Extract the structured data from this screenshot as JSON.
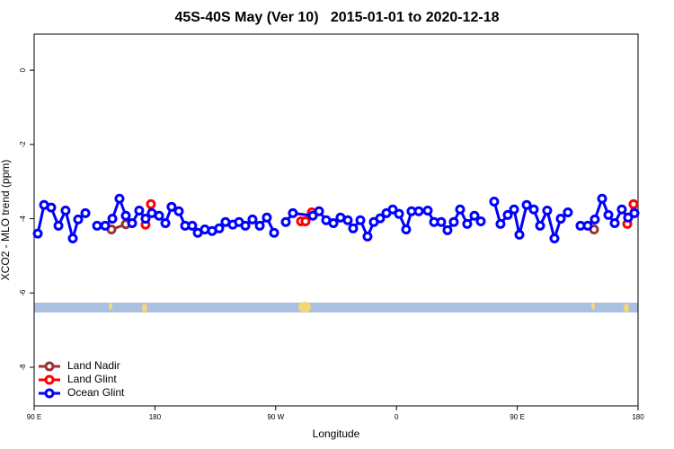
{
  "chart_data": {
    "type": "line",
    "title": "45S-40S May (Ver 10)   2015-01-01 to 2020-12-18",
    "x_label": "Longitude",
    "y_label": "XCO2 - MLO trend (ppm)",
    "xlim": [
      90,
      540
    ],
    "ylim": [
      -9.04,
      0.97
    ],
    "xticks": [
      {
        "value": 90,
        "label": "90 E"
      },
      {
        "value": 180,
        "label": "180"
      },
      {
        "value": 270,
        "label": "90 W"
      },
      {
        "value": 360,
        "label": "0"
      },
      {
        "value": 450,
        "label": "90 E"
      },
      {
        "value": 540,
        "label": "180"
      }
    ],
    "yticks": [
      0,
      -2,
      -4,
      -6,
      -8
    ],
    "legend": "bottom-left",
    "series": [
      {
        "name": "Land Nadir",
        "color": "#993333",
        "x": [
          147.6,
          158.3,
          null,
          507.2
        ],
        "values": [
          -4.29,
          -4.15,
          null,
          -4.29
        ]
      },
      {
        "name": "Land Glint",
        "color": "#ff0000",
        "x": [
          173,
          177,
          null,
          288.9,
          292.2,
          296.9,
          null,
          532,
          536.6
        ],
        "values": [
          -4.16,
          -3.61,
          null,
          -4.07,
          -4.07,
          -3.83,
          null,
          -4.14,
          -3.61
        ]
      },
      {
        "name": "Ocean Glint",
        "color": "#0000ff",
        "x": [
          92.7,
          97.4,
          102.7,
          108.1,
          113.4,
          118.8,
          122.8,
          128.2,
          null,
          136.9,
          142.9,
          148.3,
          153.6,
          158.3,
          163,
          168.3,
          173,
          177.7,
          183.1,
          187.8,
          192.4,
          197.8,
          202.5,
          207.8,
          211.9,
          217.2,
          222.6,
          227.9,
          232.6,
          238,
          242.7,
          247.4,
          252.7,
          258.1,
          263.4,
          268.8,
          null,
          277.5,
          282.8,
          297.6,
          302.3,
          307.6,
          313,
          318.3,
          323.7,
          327.7,
          333.1,
          338.4,
          343.1,
          347.8,
          352.5,
          357.2,
          361.9,
          367.2,
          371.2,
          376.6,
          383.3,
          388,
          393.3,
          398,
          402.7,
          407.4,
          412.7,
          418.1,
          422.8,
          null,
          432.8,
          437.5,
          442.9,
          447.6,
          451.6,
          457,
          462.3,
          467,
          472.3,
          477.7,
          482.4,
          487.7,
          null,
          497.1,
          502.5,
          507.8,
          513.2,
          517.9,
          522.6,
          527.9,
          532.6,
          537.3
        ],
        "values": [
          -4.4,
          -3.63,
          -3.7,
          -4.19,
          -3.78,
          -4.53,
          -4.02,
          -3.85,
          null,
          -4.19,
          -4.19,
          -4.0,
          -3.46,
          -3.92,
          -4.12,
          -3.78,
          -4.0,
          -3.85,
          -3.92,
          -4.12,
          -3.68,
          -3.8,
          -4.19,
          -4.19,
          -4.38,
          -4.29,
          -4.33,
          -4.26,
          -4.09,
          -4.16,
          -4.09,
          -4.19,
          -4.02,
          -4.19,
          -3.97,
          -4.38,
          null,
          -4.09,
          -3.85,
          -3.92,
          -3.8,
          -4.04,
          -4.12,
          -3.97,
          -4.04,
          -4.26,
          -4.04,
          -4.48,
          -4.09,
          -3.99,
          -3.85,
          -3.75,
          -3.87,
          -4.29,
          -3.8,
          -3.8,
          -3.78,
          -4.09,
          -4.09,
          -4.31,
          -4.09,
          -3.75,
          -4.14,
          -3.92,
          -4.07,
          null,
          -3.54,
          -4.14,
          -3.9,
          -3.75,
          -4.43,
          -3.63,
          -3.75,
          -4.19,
          -3.78,
          -4.53,
          -4.0,
          -3.83,
          null,
          -4.19,
          -4.19,
          -4.02,
          -3.46,
          -3.9,
          -4.12,
          -3.75,
          -3.97,
          -3.85
        ]
      }
    ]
  }
}
